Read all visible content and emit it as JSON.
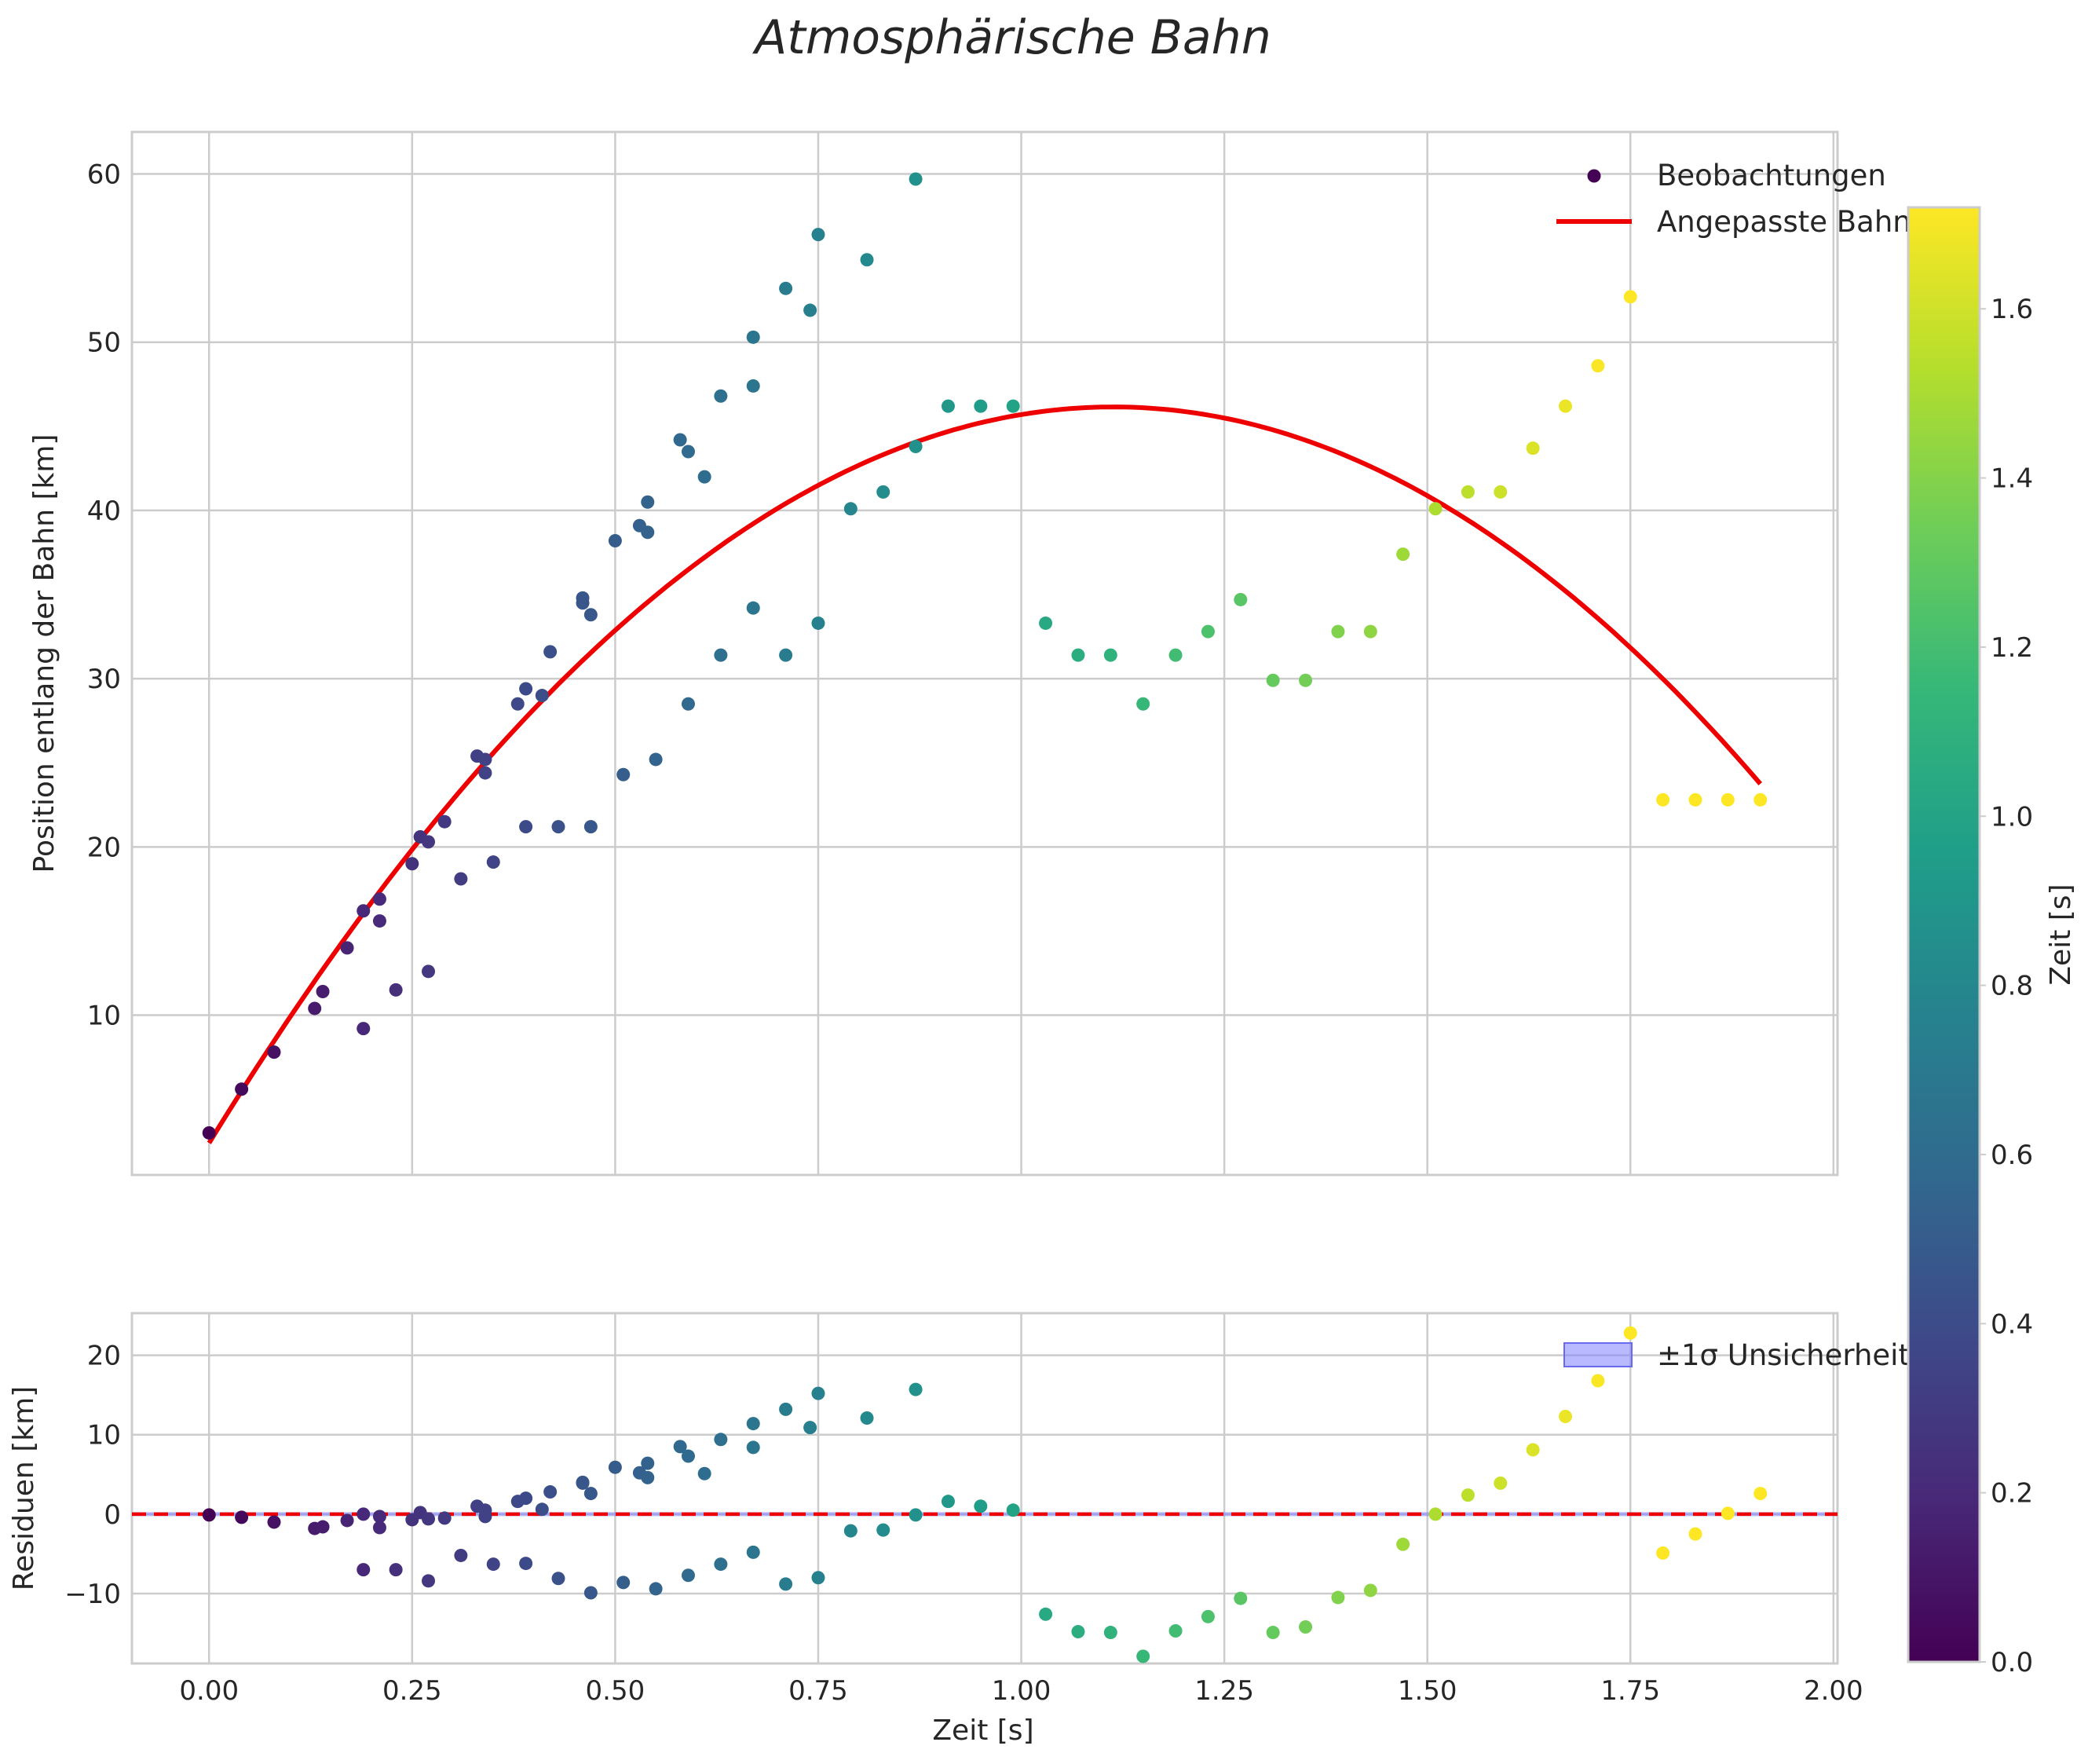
{
  "chart_data": {
    "title": "Atmosphärische Bahn",
    "xlabel": "Zeit [s]",
    "colormap": "viridis",
    "colorbar": {
      "label": "Zeit [s]",
      "range": [
        0.0,
        1.72
      ],
      "ticks": [
        0.0,
        0.2,
        0.4,
        0.6,
        0.8,
        1.0,
        1.2,
        1.4,
        1.6
      ],
      "tick_labels": [
        "0.0",
        "0.2",
        "0.4",
        "0.6",
        "0.8",
        "1.0",
        "1.2",
        "1.4",
        "1.6"
      ]
    },
    "x_ticks": [
      0.0,
      0.25,
      0.5,
      0.75,
      1.0,
      1.25,
      1.5,
      1.75,
      2.0
    ],
    "x_tick_labels": [
      "0.00",
      "0.25",
      "0.50",
      "0.75",
      "1.00",
      "1.25",
      "1.50",
      "1.75",
      "2.00"
    ],
    "panels": [
      {
        "type": "scatter",
        "ylabel": "Position entlang der Bahn [km]",
        "xlim": [
          -0.095,
          2.005
        ],
        "ylim": [
          0.5,
          62.5
        ],
        "y_ticks": [
          10,
          20,
          30,
          40,
          50,
          60
        ],
        "y_tick_labels": [
          "10",
          "20",
          "30",
          "40",
          "50",
          "60"
        ],
        "grid": true,
        "legend": {
          "position": "top-right",
          "entries": [
            "Beobachtungen",
            "Angepasste Bahn"
          ]
        },
        "series": [
          {
            "name": "Beobachtungen",
            "kind": "scatter",
            "points": [
              [
                0.0,
                3.0
              ],
              [
                0.04,
                5.6
              ],
              [
                0.08,
                7.8
              ],
              [
                0.13,
                10.4
              ],
              [
                0.14,
                11.4
              ],
              [
                0.17,
                14.0
              ],
              [
                0.19,
                9.2
              ],
              [
                0.19,
                16.2
              ],
              [
                0.21,
                15.6
              ],
              [
                0.21,
                16.9
              ],
              [
                0.23,
                11.5
              ],
              [
                0.25,
                19.0
              ],
              [
                0.26,
                20.6
              ],
              [
                0.27,
                20.3
              ],
              [
                0.27,
                12.6
              ],
              [
                0.29,
                21.5
              ],
              [
                0.31,
                18.1
              ],
              [
                0.33,
                25.4
              ],
              [
                0.34,
                25.2
              ],
              [
                0.34,
                24.4
              ],
              [
                0.35,
                19.1
              ],
              [
                0.38,
                28.5
              ],
              [
                0.39,
                29.4
              ],
              [
                0.39,
                21.2
              ],
              [
                0.41,
                29.0
              ],
              [
                0.42,
                31.6
              ],
              [
                0.43,
                21.2
              ],
              [
                0.46,
                34.8
              ],
              [
                0.46,
                34.5
              ],
              [
                0.47,
                33.8
              ],
              [
                0.47,
                21.2
              ],
              [
                0.5,
                38.2
              ],
              [
                0.51,
                24.3
              ],
              [
                0.53,
                39.1
              ],
              [
                0.54,
                40.5
              ],
              [
                0.54,
                38.7
              ],
              [
                0.55,
                25.2
              ],
              [
                0.58,
                44.2
              ],
              [
                0.59,
                43.5
              ],
              [
                0.59,
                28.5
              ],
              [
                0.61,
                42.0
              ],
              [
                0.63,
                46.8
              ],
              [
                0.63,
                31.4
              ],
              [
                0.67,
                50.3
              ],
              [
                0.67,
                47.4
              ],
              [
                0.67,
                34.2
              ],
              [
                0.71,
                53.2
              ],
              [
                0.71,
                31.4
              ],
              [
                0.74,
                51.9
              ],
              [
                0.75,
                56.4
              ],
              [
                0.75,
                33.3
              ],
              [
                0.79,
                40.1
              ],
              [
                0.81,
                54.9
              ],
              [
                0.83,
                41.1
              ],
              [
                0.87,
                59.7
              ],
              [
                0.87,
                43.8
              ],
              [
                0.91,
                46.2
              ],
              [
                0.95,
                46.2
              ],
              [
                0.99,
                46.2
              ],
              [
                1.03,
                33.3
              ],
              [
                1.07,
                31.4
              ],
              [
                1.11,
                31.4
              ],
              [
                1.15,
                28.5
              ],
              [
                1.19,
                31.4
              ],
              [
                1.23,
                32.8
              ],
              [
                1.27,
                34.7
              ],
              [
                1.31,
                29.9
              ],
              [
                1.35,
                29.9
              ],
              [
                1.39,
                32.8
              ],
              [
                1.43,
                32.8
              ],
              [
                1.47,
                37.4
              ],
              [
                1.51,
                40.1
              ],
              [
                1.55,
                41.1
              ],
              [
                1.59,
                41.1
              ],
              [
                1.63,
                43.7
              ],
              [
                1.67,
                46.2
              ],
              [
                1.71,
                48.6
              ],
              [
                1.75,
                52.7
              ],
              [
                1.79,
                22.8
              ],
              [
                1.83,
                22.8
              ],
              [
                1.87,
                22.8
              ],
              [
                1.91,
                22.8
              ]
            ]
          },
          {
            "name": "Angepasste Bahn",
            "kind": "line",
            "color": "#ee0000",
            "model": "quadratic",
            "coefficients": {
              "a": -35.3,
              "b": 78.6,
              "c": 2.4
            },
            "x_range": [
              0.0,
              1.91
            ]
          }
        ]
      },
      {
        "type": "scatter",
        "ylabel": "Residuen [km]",
        "xlim": [
          -0.095,
          2.005
        ],
        "ylim": [
          -18.8,
          25.3
        ],
        "y_ticks": [
          -10,
          0,
          10,
          20
        ],
        "y_tick_labels": [
          "−10",
          "0",
          "10",
          "20"
        ],
        "grid": true,
        "zero_line": {
          "y": 0,
          "color": "#ee0000",
          "style": "dashed"
        },
        "legend": {
          "position": "top-right",
          "entries": [
            "±1σ Unsicherheit"
          ]
        },
        "band": {
          "name": "±1σ Unsicherheit",
          "color": "#8080ff",
          "halfwidth": 0.25
        },
        "series": [
          {
            "name": "Residuen",
            "kind": "scatter",
            "points": [
              [
                0.0,
                -0.1
              ],
              [
                0.04,
                -0.4
              ],
              [
                0.08,
                -1.0
              ],
              [
                0.13,
                -1.8
              ],
              [
                0.14,
                -1.6
              ],
              [
                0.17,
                -0.8
              ],
              [
                0.19,
                -7.0
              ],
              [
                0.19,
                0.0
              ],
              [
                0.21,
                -1.7
              ],
              [
                0.21,
                -0.3
              ],
              [
                0.23,
                -7.0
              ],
              [
                0.25,
                -0.7
              ],
              [
                0.26,
                0.2
              ],
              [
                0.27,
                -0.6
              ],
              [
                0.27,
                -8.4
              ],
              [
                0.29,
                -0.5
              ],
              [
                0.31,
                -5.2
              ],
              [
                0.33,
                1.0
              ],
              [
                0.34,
                0.5
              ],
              [
                0.34,
                -0.3
              ],
              [
                0.35,
                -6.3
              ],
              [
                0.38,
                1.6
              ],
              [
                0.39,
                2.0
              ],
              [
                0.39,
                -6.2
              ],
              [
                0.41,
                0.6
              ],
              [
                0.42,
                2.8
              ],
              [
                0.43,
                -8.1
              ],
              [
                0.46,
                3.9
              ],
              [
                0.46,
                4.0
              ],
              [
                0.47,
                2.6
              ],
              [
                0.47,
                -9.9
              ],
              [
                0.5,
                5.9
              ],
              [
                0.51,
                -8.6
              ],
              [
                0.53,
                5.2
              ],
              [
                0.54,
                6.4
              ],
              [
                0.54,
                4.6
              ],
              [
                0.55,
                -9.4
              ],
              [
                0.58,
                8.5
              ],
              [
                0.59,
                7.3
              ],
              [
                0.59,
                -7.7
              ],
              [
                0.61,
                5.1
              ],
              [
                0.63,
                9.4
              ],
              [
                0.63,
                -6.3
              ],
              [
                0.67,
                11.4
              ],
              [
                0.67,
                8.4
              ],
              [
                0.67,
                -4.8
              ],
              [
                0.71,
                13.2
              ],
              [
                0.71,
                -8.8
              ],
              [
                0.74,
                10.9
              ],
              [
                0.75,
                15.2
              ],
              [
                0.75,
                -8.0
              ],
              [
                0.79,
                -2.1
              ],
              [
                0.81,
                12.1
              ],
              [
                0.83,
                -2.0
              ],
              [
                0.87,
                15.7
              ],
              [
                0.87,
                -0.1
              ],
              [
                0.91,
                1.6
              ],
              [
                0.95,
                1.0
              ],
              [
                0.99,
                0.5
              ],
              [
                1.03,
                -12.6
              ],
              [
                1.07,
                -14.8
              ],
              [
                1.11,
                -14.9
              ],
              [
                1.15,
                -17.9
              ],
              [
                1.19,
                -14.7
              ],
              [
                1.23,
                -12.9
              ],
              [
                1.27,
                -10.6
              ],
              [
                1.31,
                -14.9
              ],
              [
                1.35,
                -14.2
              ],
              [
                1.39,
                -10.5
              ],
              [
                1.43,
                -9.6
              ],
              [
                1.47,
                -3.8
              ],
              [
                1.51,
                0.0
              ],
              [
                1.55,
                2.4
              ],
              [
                1.59,
                3.9
              ],
              [
                1.63,
                8.1
              ],
              [
                1.67,
                12.3
              ],
              [
                1.71,
                16.8
              ],
              [
                1.75,
                22.8
              ],
              [
                1.79,
                -4.9
              ],
              [
                1.83,
                -2.5
              ],
              [
                1.87,
                0.1
              ],
              [
                1.91,
                2.6
              ]
            ]
          }
        ]
      }
    ]
  }
}
